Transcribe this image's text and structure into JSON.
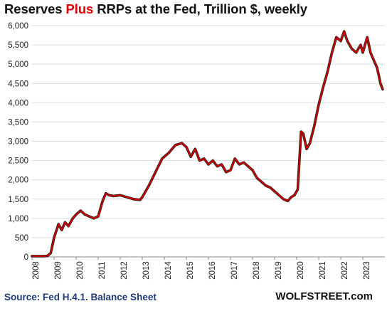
{
  "title": {
    "part1": "Reserves ",
    "highlight": "Plus",
    "part2": " RRPs at the Fed, Trillion $, weekly"
  },
  "source": "Source: Fed H.4.1. Balance Sheet",
  "brand": "WOLFSTREET.com",
  "colors": {
    "line": "#d40000",
    "line_shadow": "#222222",
    "grid": "#d9d9d9",
    "highlight": "#e00000"
  },
  "chart_data": {
    "type": "line",
    "title": "Reserves Plus RRPs at the Fed, Trillion $, weekly",
    "xlabel": "",
    "ylabel": "",
    "ylim": [
      0,
      6000
    ],
    "xlim": [
      2008.0,
      2024.0
    ],
    "y_ticks": [
      "0",
      "500",
      "1,000",
      "1,500",
      "2,000",
      "2,500",
      "3,000",
      "3,500",
      "4,000",
      "4,500",
      "5,000",
      "5,500",
      "6,000"
    ],
    "y_tick_values": [
      0,
      500,
      1000,
      1500,
      2000,
      2500,
      3000,
      3500,
      4000,
      4500,
      5000,
      5500,
      6000
    ],
    "x_ticks": [
      "2008",
      "2009",
      "2010",
      "2011",
      "2012",
      "2013",
      "2014",
      "2015",
      "2016",
      "2017",
      "2018",
      "2019",
      "2020",
      "2021",
      "2022",
      "2023"
    ],
    "grid": "horizontal",
    "series": [
      {
        "x": [
          2008.0,
          2008.5,
          2008.7,
          2008.85,
          2009.0,
          2009.2,
          2009.35,
          2009.5,
          2009.65,
          2009.85,
          2010.0,
          2010.2,
          2010.4,
          2010.6,
          2010.8,
          2011.0,
          2011.2,
          2011.35,
          2011.5,
          2011.7,
          2012.0,
          2012.3,
          2012.6,
          2012.9,
          2013.0,
          2013.3,
          2013.6,
          2013.9,
          2014.2,
          2014.5,
          2014.8,
          2015.0,
          2015.2,
          2015.4,
          2015.6,
          2015.8,
          2016.0,
          2016.2,
          2016.4,
          2016.6,
          2016.8,
          2017.0,
          2017.2,
          2017.4,
          2017.6,
          2017.8,
          2018.0,
          2018.2,
          2018.4,
          2018.6,
          2018.8,
          2019.0,
          2019.2,
          2019.4,
          2019.6,
          2019.75,
          2019.9,
          2020.05,
          2020.2,
          2020.3,
          2020.45,
          2020.6,
          2020.8,
          2021.0,
          2021.2,
          2021.4,
          2021.6,
          2021.8,
          2022.0,
          2022.15,
          2022.3,
          2022.5,
          2022.7,
          2022.9,
          2023.0,
          2023.2,
          2023.35,
          2023.5,
          2023.65,
          2023.8,
          2023.9
        ],
        "values": [
          20,
          20,
          25,
          100,
          500,
          850,
          700,
          900,
          800,
          1000,
          1100,
          1200,
          1100,
          1050,
          1000,
          1050,
          1450,
          1650,
          1600,
          1580,
          1600,
          1550,
          1500,
          1480,
          1550,
          1850,
          2200,
          2550,
          2700,
          2900,
          2950,
          2850,
          2600,
          2800,
          2500,
          2550,
          2400,
          2500,
          2350,
          2400,
          2200,
          2250,
          2550,
          2400,
          2450,
          2350,
          2250,
          2050,
          1950,
          1850,
          1800,
          1700,
          1600,
          1500,
          1450,
          1550,
          1600,
          1750,
          3250,
          3200,
          2800,
          2950,
          3400,
          3950,
          4400,
          4800,
          5300,
          5700,
          5600,
          5850,
          5600,
          5400,
          5300,
          5500,
          5300,
          5700,
          5300,
          5100,
          4900,
          4500,
          4350
        ]
      }
    ]
  }
}
